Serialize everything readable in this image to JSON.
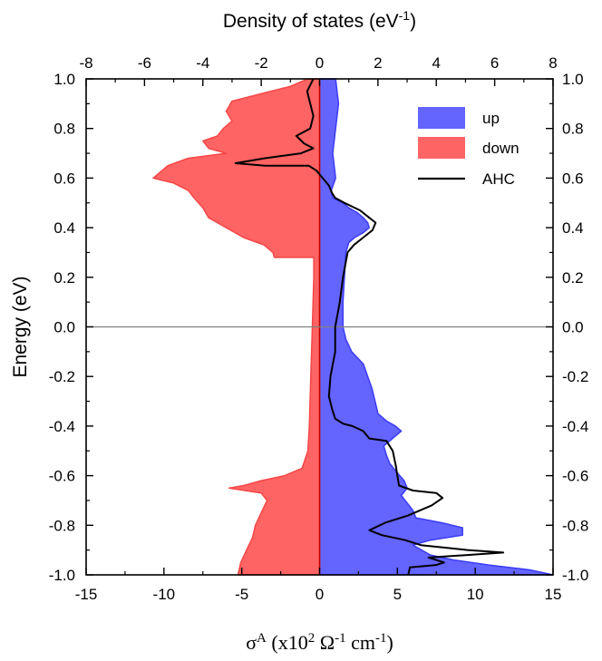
{
  "chart_data": {
    "type": "area",
    "title": "",
    "top_axis": {
      "label_main": "Density of states (eV",
      "label_sup": "-1",
      "label_end": ")",
      "range": [
        -8,
        8
      ],
      "ticks": [
        "-8",
        "-6",
        "-4",
        "-2",
        "0",
        "2",
        "4",
        "6",
        "8"
      ]
    },
    "bottom_axis": {
      "label_main": "σ",
      "label_sup_a": "A",
      "label_mid1": " (x10",
      "label_sup_2": "2",
      "label_mid2": " Ω",
      "label_sup_m1": "-1",
      "label_mid3": " cm",
      "label_sup_m1b": "-1",
      "label_end": ")",
      "range": [
        -15,
        15
      ],
      "ticks": [
        "-15",
        "-10",
        "-5",
        "0",
        "5",
        "10",
        "15"
      ]
    },
    "left_axis": {
      "label": "Energy (eV)",
      "range": [
        -1.0,
        1.0
      ],
      "ticks": [
        "-1.0",
        "-0.8",
        "-0.6",
        "-0.4",
        "-0.2",
        "0.0",
        "0.2",
        "0.4",
        "0.6",
        "0.8",
        "1.0"
      ]
    },
    "right_axis": {
      "range": [
        -1.0,
        1.0
      ],
      "ticks": [
        "-1.0",
        "-0.8",
        "-0.6",
        "-0.4",
        "-0.2",
        "0.0",
        "0.2",
        "0.4",
        "0.6",
        "0.8",
        "1.0"
      ]
    },
    "fermi_line": true,
    "legend": {
      "placement": "top-right",
      "entries": [
        {
          "key": "up",
          "label": "up"
        },
        {
          "key": "down",
          "label": "down"
        },
        {
          "key": "ahc",
          "label": "AHC"
        }
      ]
    },
    "colors": {
      "up_fill": "#6464ff",
      "up_edge": "#3c3cf5",
      "down_fill": "#ff6464",
      "down_edge": "#f54646",
      "ahc": "#000000",
      "zero_line": "#c00000",
      "fermi": "#808080"
    },
    "series": [
      {
        "key": "up",
        "axis": "top",
        "points": [
          [
            0.55,
            1.0
          ],
          [
            0.6,
            0.95
          ],
          [
            0.65,
            0.9
          ],
          [
            0.6,
            0.85
          ],
          [
            0.55,
            0.8
          ],
          [
            0.5,
            0.75
          ],
          [
            0.45,
            0.7
          ],
          [
            0.5,
            0.65
          ],
          [
            0.55,
            0.6
          ],
          [
            0.4,
            0.55
          ],
          [
            0.45,
            0.52
          ],
          [
            0.8,
            0.5
          ],
          [
            1.0,
            0.48
          ],
          [
            1.3,
            0.46
          ],
          [
            1.5,
            0.44
          ],
          [
            1.65,
            0.42
          ],
          [
            1.7,
            0.4
          ],
          [
            1.5,
            0.38
          ],
          [
            1.2,
            0.36
          ],
          [
            1.0,
            0.34
          ],
          [
            0.9,
            0.3
          ],
          [
            0.85,
            0.2
          ],
          [
            0.8,
            0.1
          ],
          [
            0.8,
            0.0
          ],
          [
            0.9,
            -0.05
          ],
          [
            1.1,
            -0.1
          ],
          [
            1.5,
            -0.15
          ],
          [
            1.65,
            -0.2
          ],
          [
            1.8,
            -0.25
          ],
          [
            1.9,
            -0.3
          ],
          [
            2.0,
            -0.35
          ],
          [
            2.3,
            -0.38
          ],
          [
            2.6,
            -0.4
          ],
          [
            2.8,
            -0.42
          ],
          [
            2.5,
            -0.45
          ],
          [
            2.2,
            -0.48
          ],
          [
            2.3,
            -0.52
          ],
          [
            2.4,
            -0.55
          ],
          [
            2.6,
            -0.58
          ],
          [
            2.9,
            -0.62
          ],
          [
            3.0,
            -0.65
          ],
          [
            2.8,
            -0.68
          ],
          [
            3.0,
            -0.71
          ],
          [
            3.2,
            -0.74
          ],
          [
            3.3,
            -0.77
          ],
          [
            4.2,
            -0.79
          ],
          [
            4.9,
            -0.81
          ],
          [
            4.9,
            -0.84
          ],
          [
            3.8,
            -0.86
          ],
          [
            3.2,
            -0.88
          ],
          [
            3.5,
            -0.9
          ],
          [
            3.8,
            -0.92
          ],
          [
            4.6,
            -0.94
          ],
          [
            5.8,
            -0.96
          ],
          [
            7.2,
            -0.98
          ],
          [
            8.0,
            -1.0
          ]
        ]
      },
      {
        "key": "down",
        "axis": "top",
        "points": [
          [
            -0.4,
            1.0
          ],
          [
            -1.0,
            0.97
          ],
          [
            -2.0,
            0.94
          ],
          [
            -3.0,
            0.91
          ],
          [
            -3.2,
            0.87
          ],
          [
            -3.0,
            0.83
          ],
          [
            -3.3,
            0.8
          ],
          [
            -3.5,
            0.77
          ],
          [
            -4.0,
            0.75
          ],
          [
            -3.8,
            0.72
          ],
          [
            -3.2,
            0.7
          ],
          [
            -4.5,
            0.68
          ],
          [
            -5.2,
            0.65
          ],
          [
            -5.7,
            0.6
          ],
          [
            -5.0,
            0.58
          ],
          [
            -4.5,
            0.55
          ],
          [
            -4.3,
            0.52
          ],
          [
            -4.0,
            0.48
          ],
          [
            -3.8,
            0.44
          ],
          [
            -3.2,
            0.4
          ],
          [
            -2.6,
            0.36
          ],
          [
            -1.9,
            0.33
          ],
          [
            -1.6,
            0.3
          ],
          [
            -1.55,
            0.28
          ],
          [
            -0.2,
            0.28
          ],
          [
            -0.2,
            0.2
          ],
          [
            -0.25,
            0.0
          ],
          [
            -0.3,
            -0.2
          ],
          [
            -0.35,
            -0.4
          ],
          [
            -0.4,
            -0.5
          ],
          [
            -0.6,
            -0.57
          ],
          [
            -1.2,
            -0.6
          ],
          [
            -2.0,
            -0.62
          ],
          [
            -2.6,
            -0.64
          ],
          [
            -3.1,
            -0.65
          ],
          [
            -2.0,
            -0.67
          ],
          [
            -1.8,
            -0.7
          ],
          [
            -2.0,
            -0.75
          ],
          [
            -2.2,
            -0.8
          ],
          [
            -2.3,
            -0.85
          ],
          [
            -2.5,
            -0.9
          ],
          [
            -2.7,
            -0.95
          ],
          [
            -2.8,
            -1.0
          ]
        ]
      },
      {
        "key": "ahc",
        "axis": "bottom",
        "points": [
          [
            -0.4,
            1.0
          ],
          [
            -0.8,
            0.95
          ],
          [
            -0.6,
            0.9
          ],
          [
            -0.4,
            0.85
          ],
          [
            -0.6,
            0.8
          ],
          [
            -1.5,
            0.77
          ],
          [
            -1.0,
            0.74
          ],
          [
            -0.4,
            0.72
          ],
          [
            -1.2,
            0.7
          ],
          [
            -3.5,
            0.68
          ],
          [
            -5.4,
            0.66
          ],
          [
            -3.5,
            0.65
          ],
          [
            -2.0,
            0.65
          ],
          [
            -0.7,
            0.65
          ],
          [
            -0.2,
            0.63
          ],
          [
            0.2,
            0.6
          ],
          [
            0.6,
            0.57
          ],
          [
            0.8,
            0.54
          ],
          [
            1.0,
            0.52
          ],
          [
            1.6,
            0.5
          ],
          [
            2.6,
            0.47
          ],
          [
            3.2,
            0.44
          ],
          [
            3.6,
            0.42
          ],
          [
            3.4,
            0.39
          ],
          [
            2.8,
            0.36
          ],
          [
            2.2,
            0.33
          ],
          [
            1.8,
            0.3
          ],
          [
            1.5,
            0.2
          ],
          [
            1.3,
            0.1
          ],
          [
            1.0,
            0.0
          ],
          [
            1.0,
            -0.1
          ],
          [
            0.7,
            -0.2
          ],
          [
            0.6,
            -0.28
          ],
          [
            0.8,
            -0.33
          ],
          [
            1.0,
            -0.37
          ],
          [
            1.5,
            -0.39
          ],
          [
            2.1,
            -0.4
          ],
          [
            2.8,
            -0.42
          ],
          [
            3.2,
            -0.45
          ],
          [
            4.3,
            -0.46
          ],
          [
            4.7,
            -0.5
          ],
          [
            4.9,
            -0.56
          ],
          [
            5.0,
            -0.6
          ],
          [
            5.1,
            -0.64
          ],
          [
            6.0,
            -0.66
          ],
          [
            7.5,
            -0.67
          ],
          [
            7.9,
            -0.69
          ],
          [
            7.2,
            -0.72
          ],
          [
            5.7,
            -0.76
          ],
          [
            4.2,
            -0.79
          ],
          [
            3.2,
            -0.82
          ],
          [
            4.0,
            -0.84
          ],
          [
            5.5,
            -0.86
          ],
          [
            6.5,
            -0.88
          ],
          [
            8.0,
            -0.89
          ],
          [
            9.5,
            -0.9
          ],
          [
            11.8,
            -0.91
          ],
          [
            9.5,
            -0.92
          ],
          [
            7.0,
            -0.93
          ],
          [
            8.0,
            -0.95
          ],
          [
            7.5,
            -0.96
          ],
          [
            5.8,
            -0.97
          ],
          [
            5.7,
            -1.0
          ]
        ]
      }
    ]
  }
}
